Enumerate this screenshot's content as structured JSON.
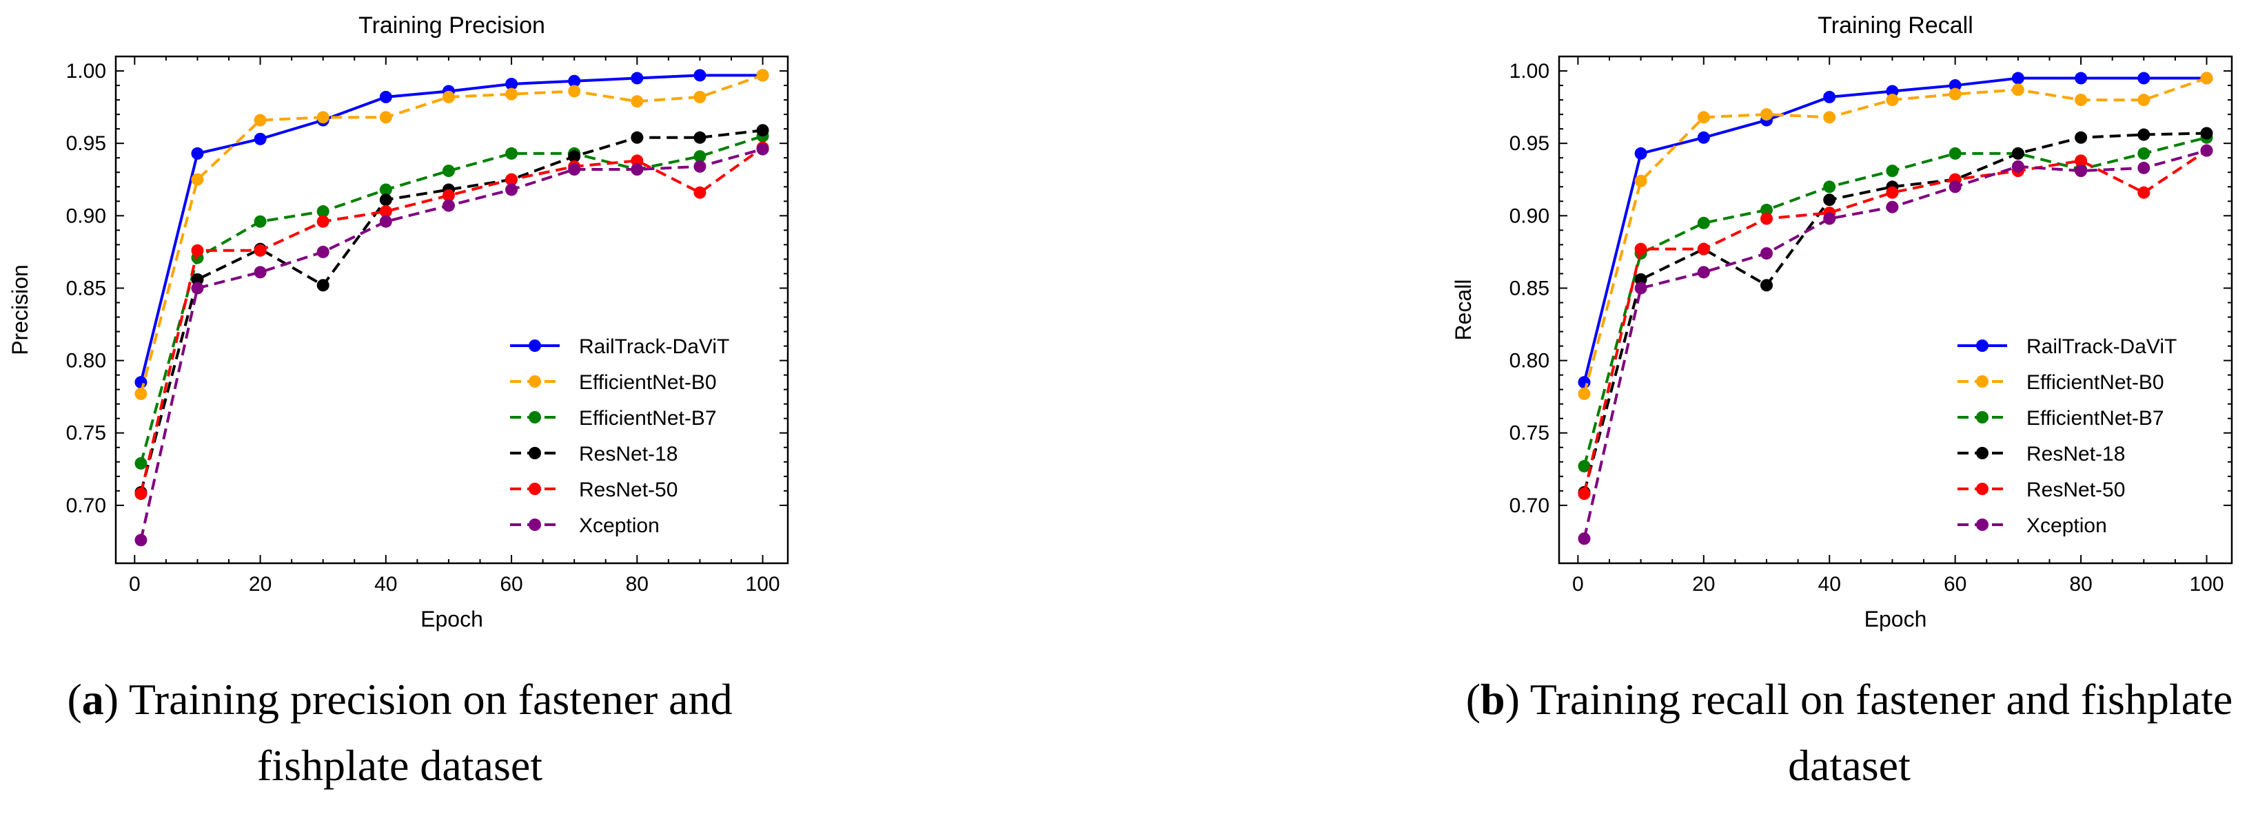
{
  "colors": {
    "RailTrack-DaViT": "#0000ff",
    "EfficientNet-B0": "#ffa500",
    "EfficientNet-B7": "#008000",
    "ResNet-18": "#000000",
    "ResNet-50": "#ff0000",
    "Xception": "#800080"
  },
  "captions": {
    "a": {
      "letter": "a",
      "text": " Training precision on fastener and fishplate dataset"
    },
    "b": {
      "letter": "b",
      "text": " Training recall on fastener and fishplate dataset"
    }
  },
  "chart_data": [
    {
      "type": "line",
      "title": "Training Precision",
      "xlabel": "Epoch",
      "ylabel": "Precision",
      "xlim": [
        -3,
        104
      ],
      "ylim": [
        0.66,
        1.01
      ],
      "xticks": [
        0,
        20,
        40,
        60,
        80,
        100
      ],
      "yticks": [
        0.7,
        0.75,
        0.8,
        0.85,
        0.9,
        0.95,
        1.0
      ],
      "ytick_labels": [
        "0.70",
        "0.75",
        "0.80",
        "0.85",
        "0.90",
        "0.95",
        "1.00"
      ],
      "grid": false,
      "legend_placement": "lower-right",
      "x": [
        1,
        10,
        20,
        30,
        40,
        50,
        60,
        70,
        80,
        90,
        100
      ],
      "series": [
        {
          "name": "RailTrack-DaViT",
          "style": "solid",
          "values": [
            0.785,
            0.943,
            0.953,
            0.966,
            0.982,
            0.986,
            0.991,
            0.993,
            0.995,
            0.997,
            0.997
          ]
        },
        {
          "name": "EfficientNet-B0",
          "style": "dashed",
          "values": [
            0.777,
            0.925,
            0.966,
            0.968,
            0.968,
            0.982,
            0.984,
            0.986,
            0.979,
            0.982,
            0.997
          ]
        },
        {
          "name": "EfficientNet-B7",
          "style": "dashed",
          "values": [
            0.729,
            0.871,
            0.896,
            0.903,
            0.918,
            0.931,
            0.943,
            0.943,
            0.932,
            0.941,
            0.955
          ]
        },
        {
          "name": "ResNet-18",
          "style": "dashed",
          "values": [
            0.709,
            0.856,
            0.877,
            0.852,
            0.911,
            0.918,
            0.925,
            0.941,
            0.954,
            0.954,
            0.959
          ]
        },
        {
          "name": "ResNet-50",
          "style": "dashed",
          "values": [
            0.708,
            0.876,
            0.876,
            0.896,
            0.903,
            0.914,
            0.925,
            0.934,
            0.938,
            0.916,
            0.947
          ]
        },
        {
          "name": "Xception",
          "style": "dashed",
          "values": [
            0.676,
            0.85,
            0.861,
            0.875,
            0.896,
            0.907,
            0.918,
            0.932,
            0.932,
            0.934,
            0.946
          ]
        }
      ]
    },
    {
      "type": "line",
      "title": "Training Recall",
      "xlabel": "Epoch",
      "ylabel": "Recall",
      "xlim": [
        -3,
        104
      ],
      "ylim": [
        0.66,
        1.01
      ],
      "xticks": [
        0,
        20,
        40,
        60,
        80,
        100
      ],
      "yticks": [
        0.7,
        0.75,
        0.8,
        0.85,
        0.9,
        0.95,
        1.0
      ],
      "ytick_labels": [
        "0.70",
        "0.75",
        "0.80",
        "0.85",
        "0.90",
        "0.95",
        "1.00"
      ],
      "grid": false,
      "legend_placement": "lower-right",
      "x": [
        1,
        10,
        20,
        30,
        40,
        50,
        60,
        70,
        80,
        90,
        100
      ],
      "series": [
        {
          "name": "RailTrack-DaViT",
          "style": "solid",
          "values": [
            0.785,
            0.943,
            0.954,
            0.966,
            0.982,
            0.986,
            0.99,
            0.995,
            0.995,
            0.995,
            0.995
          ]
        },
        {
          "name": "EfficientNet-B0",
          "style": "dashed",
          "values": [
            0.777,
            0.924,
            0.968,
            0.97,
            0.968,
            0.98,
            0.984,
            0.987,
            0.98,
            0.98,
            0.995
          ]
        },
        {
          "name": "EfficientNet-B7",
          "style": "dashed",
          "values": [
            0.727,
            0.874,
            0.895,
            0.904,
            0.92,
            0.931,
            0.943,
            0.943,
            0.932,
            0.943,
            0.954
          ]
        },
        {
          "name": "ResNet-18",
          "style": "dashed",
          "values": [
            0.709,
            0.856,
            0.877,
            0.852,
            0.911,
            0.92,
            0.925,
            0.943,
            0.954,
            0.956,
            0.957
          ]
        },
        {
          "name": "ResNet-50",
          "style": "dashed",
          "values": [
            0.708,
            0.877,
            0.877,
            0.898,
            0.902,
            0.916,
            0.925,
            0.931,
            0.938,
            0.916,
            0.945
          ]
        },
        {
          "name": "Xception",
          "style": "dashed",
          "values": [
            0.677,
            0.85,
            0.861,
            0.874,
            0.898,
            0.906,
            0.92,
            0.934,
            0.931,
            0.933,
            0.945
          ]
        }
      ]
    }
  ]
}
